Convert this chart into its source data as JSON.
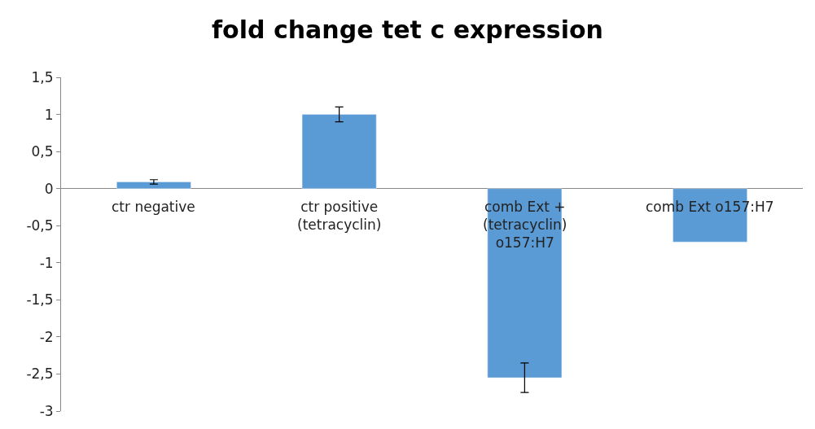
{
  "chart_data": {
    "type": "bar",
    "title": "fold change tet c expression",
    "categories": [
      "ctr negative",
      "ctr positive (tetracyclin)",
      "comb Ext + (tetracyclin) o157:H7",
      "comb Ext o157:H7"
    ],
    "values": [
      0.09,
      1.0,
      -2.55,
      -0.72
    ],
    "errors": [
      0.03,
      0.1,
      0.2,
      null
    ],
    "color": "#5b9bd5",
    "ylim": [
      -3,
      1.5
    ],
    "yticks": [
      {
        "value": 1.5,
        "label": "1,5"
      },
      1,
      {
        "value": 0.5,
        "label": "0,5"
      },
      0,
      {
        "value": -0.5,
        "label": "-0,5"
      },
      -1,
      {
        "value": -1.5,
        "label": "-1,5"
      },
      -2,
      {
        "value": -2.5,
        "label": "-2,5"
      },
      -3
    ],
    "legend": false
  }
}
